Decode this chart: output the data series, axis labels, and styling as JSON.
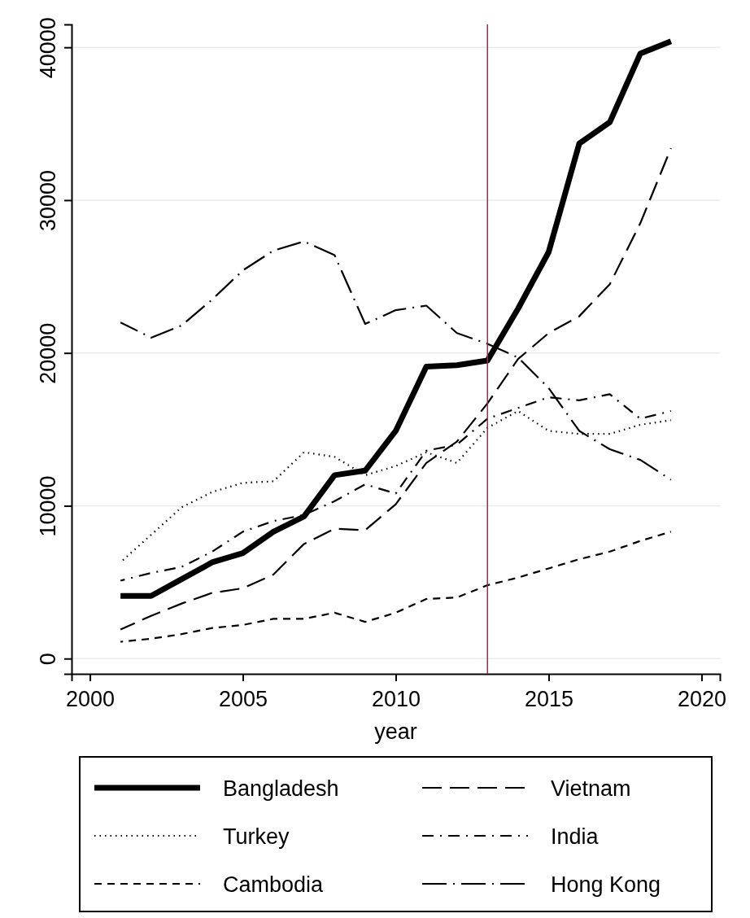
{
  "chart_data": {
    "type": "line",
    "xlabel": "year",
    "x": [
      2001,
      2002,
      2003,
      2004,
      2005,
      2006,
      2007,
      2008,
      2009,
      2010,
      2011,
      2012,
      2013,
      2014,
      2015,
      2016,
      2017,
      2018,
      2019
    ],
    "xlim": [
      1999.4,
      2020.6
    ],
    "xticks": [
      2000,
      2005,
      2010,
      2015,
      2020
    ],
    "ylim": [
      -1000,
      41500
    ],
    "yticks": [
      0,
      10000,
      20000,
      30000,
      40000
    ],
    "grid": "y",
    "legend": "bottom",
    "ref_lines": [
      {
        "axis": "x",
        "value": 2013,
        "color": "#a3264f"
      }
    ],
    "series": [
      {
        "name": "Bangladesh",
        "color": "#000000",
        "line_style": "solid",
        "values": [
          4100,
          4100,
          5200,
          6300,
          6900,
          8300,
          9300,
          12000,
          12300,
          14900,
          19100,
          19200,
          19500,
          22900,
          26600,
          33700,
          35100,
          39600,
          40400
        ]
      },
      {
        "name": "Vietnam",
        "color": "#000000",
        "line_style": "longdash",
        "values": [
          1900,
          2800,
          3600,
          4300,
          4600,
          5500,
          7500,
          8500,
          8400,
          10100,
          12800,
          14200,
          16700,
          19600,
          21300,
          22400,
          24500,
          28500,
          33400
        ]
      },
      {
        "name": "Turkey",
        "color": "#000000",
        "line_style": "dotted",
        "values": [
          6300,
          8100,
          9900,
          10900,
          11500,
          11600,
          13500,
          13200,
          12000,
          12600,
          13500,
          12800,
          15100,
          16200,
          14900,
          14700,
          14700,
          15300,
          15600
        ]
      },
      {
        "name": "India",
        "color": "#000000",
        "line_style": "dashdot",
        "values": [
          5100,
          5600,
          6000,
          7000,
          8300,
          9000,
          9400,
          10300,
          11400,
          10800,
          13600,
          14000,
          15700,
          16400,
          17100,
          16900,
          17300,
          15700,
          16200
        ]
      },
      {
        "name": "Cambodia",
        "color": "#000000",
        "line_style": "dashed",
        "values": [
          1100,
          1300,
          1600,
          2000,
          2200,
          2600,
          2600,
          3000,
          2400,
          3000,
          3900,
          4000,
          4800,
          5300,
          5900,
          6500,
          7000,
          7700,
          8300
        ]
      },
      {
        "name": "Hong Kong",
        "color": "#000000",
        "line_style": "longdashdot",
        "values": [
          22000,
          21000,
          21800,
          23500,
          25400,
          26700,
          27300,
          26400,
          21900,
          22800,
          23100,
          21300,
          20600,
          19700,
          17700,
          14900,
          13700,
          13000,
          11700
        ]
      }
    ]
  }
}
